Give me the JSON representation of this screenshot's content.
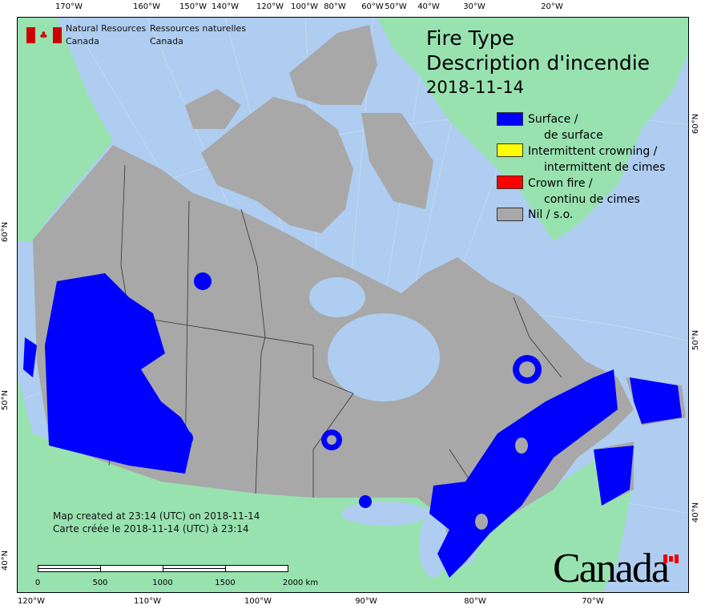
{
  "header": {
    "org_en": [
      "Natural Resources",
      "Canada"
    ],
    "org_fr": [
      "Ressources naturelles",
      "Canada"
    ]
  },
  "title": {
    "line1": "Fire Type",
    "line2": "Description d'incendie",
    "date": "2018-11-14"
  },
  "legend": [
    {
      "en": "Surface /",
      "fr": "de surface",
      "color": "#0000ff"
    },
    {
      "en": "Intermittent crowning /",
      "fr": "intermittent de cimes",
      "color": "#ffff00"
    },
    {
      "en": "Crown fire /",
      "fr": "continu de cimes",
      "color": "#ff0000"
    },
    {
      "en": "Nil / s.o.",
      "fr": "",
      "color": "#a8a8a8"
    }
  ],
  "notes": {
    "en": "Map created at 23:14 (UTC) on 2018-11-14",
    "fr": "Carte créée le 2018-11-14 (UTC) à 23:14"
  },
  "scale": {
    "labels": [
      "0",
      "500",
      "1000",
      "1500",
      "2000  km"
    ]
  },
  "axes": {
    "top": [
      "170°W",
      "160°W",
      "150°W",
      "140°W",
      "120°W",
      "100°W",
      "80°W",
      "60°W",
      "50°W",
      "40°W",
      "30°W",
      "20°W"
    ],
    "bottom": [
      "120°W",
      "110°W",
      "100°W",
      "90°W",
      "80°W",
      "70°W"
    ],
    "left": [
      "60°N",
      "50°N",
      "40°N"
    ],
    "right": [
      "60°N",
      "50°N",
      "40°N"
    ]
  },
  "wordmark": "Canada",
  "colors": {
    "water": "#aecdf0",
    "foreign_land": "#98e2b0",
    "canada_nil": "#a8a8a8",
    "surface_fire": "#0000ff"
  }
}
